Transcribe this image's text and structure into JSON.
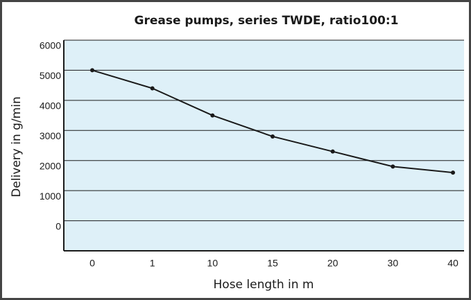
{
  "chart_data": {
    "type": "line",
    "title": "Grease pumps, series TWDE, ratio100:1",
    "x_label": "Hose length in m",
    "y_label": "Delivery in g/min",
    "categories": [
      "0",
      "1",
      "10",
      "15",
      "20",
      "30",
      "40"
    ],
    "series": [
      {
        "name": "Delivery",
        "color": "#1a1a1a",
        "values": [
          5000,
          4400,
          3500,
          2800,
          2300,
          1800,
          1600
        ]
      }
    ],
    "ylim": [
      -1000,
      6000
    ],
    "yticks": [
      0,
      1000,
      2000,
      3000,
      4000,
      5000,
      6000
    ],
    "grid": true,
    "background": "#def0f8"
  }
}
